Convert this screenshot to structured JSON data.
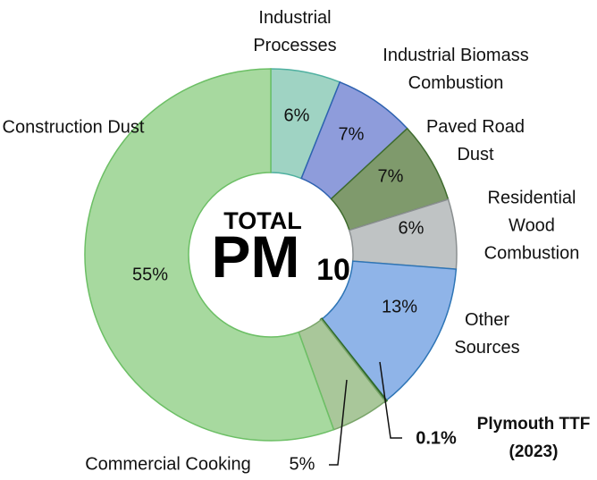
{
  "chart_data": {
    "type": "donut",
    "center_text": {
      "top": "TOTAL",
      "main": "PM",
      "sub": "10"
    },
    "categories": [
      "Industrial Processes",
      "Industrial Biomass Combustion",
      "Paved Road Dust",
      "Residential Wood Combustion",
      "Other Sources",
      "Plymouth TTF (2023)",
      "Commercial Cooking",
      "Construction Dust"
    ],
    "values": [
      6,
      7,
      7,
      6,
      13,
      0.1,
      5,
      55
    ],
    "value_labels": [
      "6%",
      "7%",
      "7%",
      "6%",
      "13%",
      "0.1%",
      "5%",
      "55%"
    ],
    "colors": [
      "#9fd3c3",
      "#8e9cdb",
      "#7f9a6c",
      "#bfc3c4",
      "#8fb4e8",
      "#3c7a36",
      "#a9c79a",
      "#a7d99f"
    ]
  }
}
